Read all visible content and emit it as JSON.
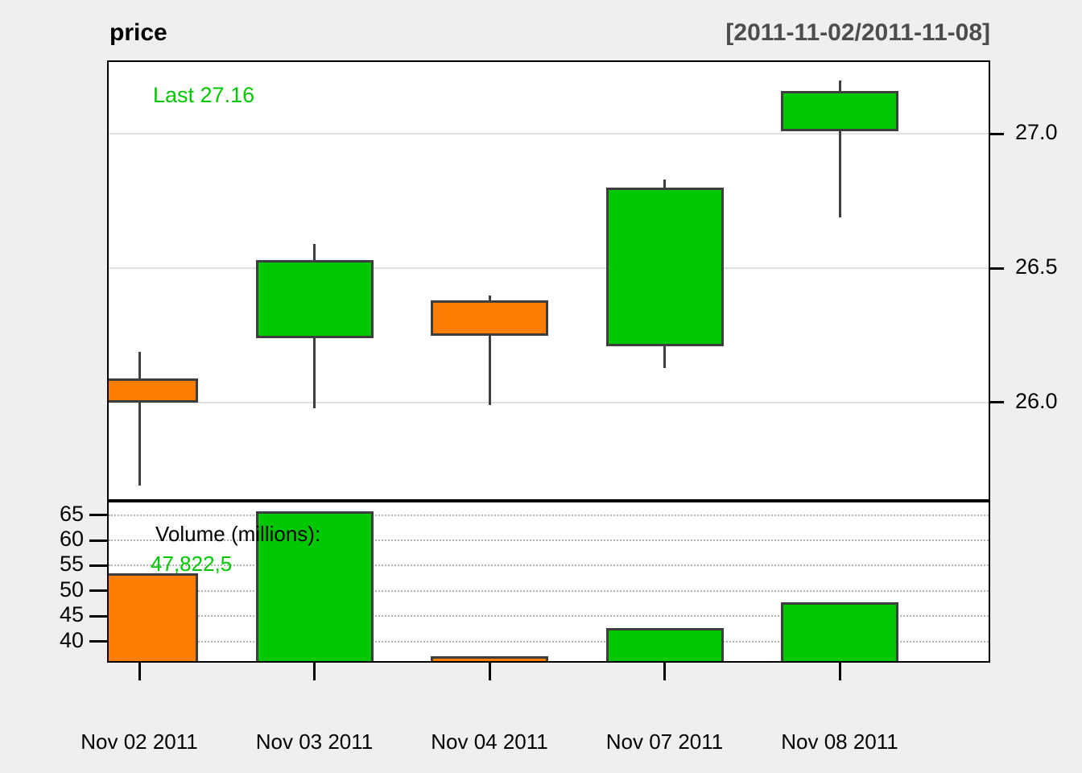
{
  "header": {
    "title": "price",
    "date_range": "[2011-11-02/2011-11-08]"
  },
  "price_panel": {
    "last_label": "Last 27.16"
  },
  "volume_panel": {
    "label": "Volume (millions):",
    "last_volume": "47,822,5"
  },
  "colors": {
    "background": "#EFEFEF",
    "panel_bg": "#FFFFFF",
    "up": "#00C800",
    "down": "#FF7D00",
    "outline": "#3E3E3E",
    "legend_green": "#00C800",
    "range_text": "#4D4D4D",
    "grid_price": "#E0E0E0",
    "grid_volume": "#B3B3B3"
  },
  "chart_data": {
    "type": "candlestick",
    "title": "price",
    "subtitle": "[2011-11-02/2011-11-08]",
    "legend": [
      "Last 27.16",
      "Volume (millions): 47,822,5"
    ],
    "x_labels": [
      "Nov 02 2011",
      "Nov 03 2011",
      "Nov 04 2011",
      "Nov 07 2011",
      "Nov 08 2011"
    ],
    "candles": [
      {
        "date": "Nov 02 2011",
        "open": 26.09,
        "high": 26.19,
        "low": 25.69,
        "close": 26.0,
        "direction": "down"
      },
      {
        "date": "Nov 03 2011",
        "open": 26.24,
        "high": 26.59,
        "low": 25.98,
        "close": 26.53,
        "direction": "up"
      },
      {
        "date": "Nov 04 2011",
        "open": 26.38,
        "high": 26.4,
        "low": 25.99,
        "close": 26.25,
        "direction": "down"
      },
      {
        "date": "Nov 07 2011",
        "open": 26.21,
        "high": 26.83,
        "low": 26.13,
        "close": 26.8,
        "direction": "up"
      },
      {
        "date": "Nov 08 2011",
        "open": 27.01,
        "high": 27.2,
        "low": 26.69,
        "close": 27.16,
        "direction": "up"
      }
    ],
    "volumes_millions": [
      53.4,
      65.7,
      37.0,
      42.7,
      47.8
    ],
    "volume_directions": [
      "down",
      "up",
      "down",
      "up",
      "up"
    ],
    "last_price": 27.16,
    "price_axis": {
      "side": "right",
      "ticks": [
        27.0,
        26.5,
        26.0
      ],
      "tick_labels": [
        "27.0",
        "26.5",
        "26.0"
      ],
      "range": [
        25.64,
        27.268
      ],
      "grid": "solid"
    },
    "volume_axis": {
      "side": "left",
      "ticks": [
        65,
        60,
        55,
        50,
        45,
        40
      ],
      "tick_labels": [
        "65",
        "60",
        "55",
        "50",
        "45",
        "40"
      ],
      "range": [
        36.1,
        67.5
      ],
      "grid": "dotted"
    }
  }
}
